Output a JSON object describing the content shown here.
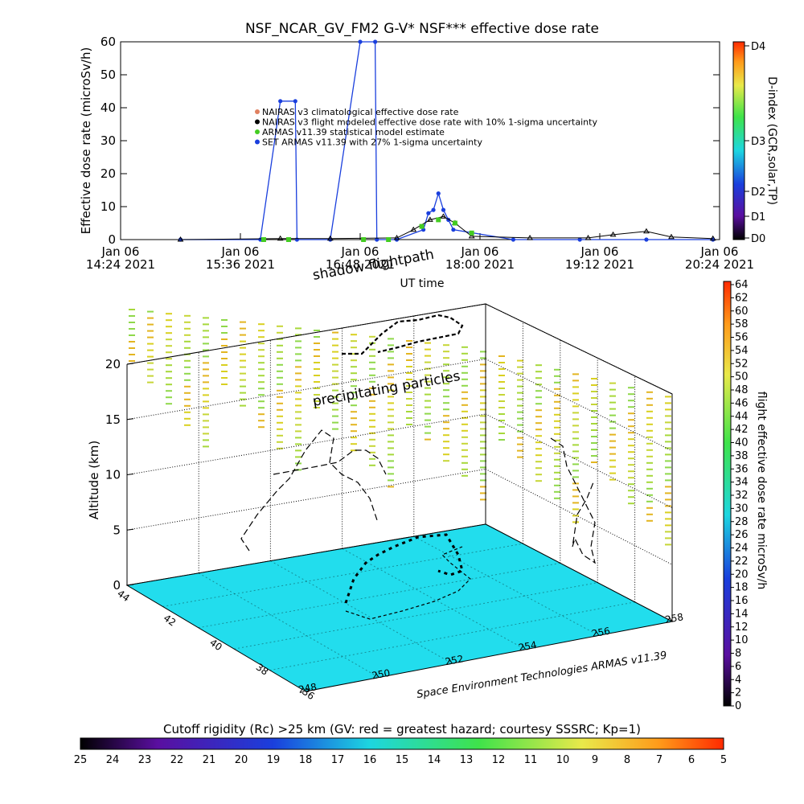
{
  "title": "NSF_NCAR_GV_FM2 G-V* NSF*** effective dose rate",
  "top_chart": {
    "ylabel": "Effective dose rate (microSv/h)",
    "xlabel": "UT time",
    "yticks": [
      "0",
      "10",
      "20",
      "30",
      "40",
      "50",
      "60"
    ],
    "xticks": [
      {
        "line1": "Jan 06",
        "line2": "14:24 2021"
      },
      {
        "line1": "Jan 06",
        "line2": "15:36 2021"
      },
      {
        "line1": "Jan 06",
        "line2": "16:48 2021"
      },
      {
        "line1": "Jan 06",
        "line2": "18:00 2021"
      },
      {
        "line1": "Jan 06",
        "line2": "19:12 2021"
      },
      {
        "line1": "Jan 06",
        "line2": "20:24 2021"
      }
    ],
    "legend": [
      {
        "label": "NAIRAS v3 climatological effective dose rate",
        "color": "#e08060"
      },
      {
        "label": "NAIRAS v3 flight modeled effective dose rate with 10% 1-sigma uncertainty",
        "color": "#000000"
      },
      {
        "label": "ARMAS v11.39 statistical model estimate",
        "color": "#44cc22"
      },
      {
        "label": "SET ARMAS v11.39 with 27% 1-sigma uncertainty",
        "color": "#1a3fdd"
      }
    ],
    "dindex_label": "D-index (GCR,solar,TP)",
    "dindex_ticks": [
      "D0",
      "D1",
      "D2",
      "D3",
      "D4"
    ]
  },
  "chart_data": {
    "type": "line",
    "title": "NSF_NCAR_GV_FM2 G-V* NSF*** effective dose rate",
    "xlabel": "UT time",
    "ylabel": "Effective dose rate (microSv/h)",
    "xlim": [
      "2021-01-06 14:24",
      "2021-01-06 20:24"
    ],
    "ylim": [
      0,
      60
    ],
    "series": [
      {
        "name": "SET ARMAS v11.39 with 27% 1-sigma uncertainty",
        "x": [
          "15:00",
          "15:48",
          "16:00",
          "16:09",
          "16:10",
          "16:30",
          "16:48",
          "16:57",
          "16:58",
          "17:10",
          "17:26",
          "17:29",
          "17:32",
          "17:35",
          "17:38",
          "17:41",
          "17:44",
          "18:20",
          "19:00",
          "19:40",
          "20:20"
        ],
        "y": [
          0,
          0,
          42,
          42,
          0,
          0,
          60,
          60,
          0,
          0,
          3,
          8,
          9,
          14,
          9,
          6,
          3,
          0,
          0,
          0,
          0
        ]
      },
      {
        "name": "NAIRAS v3 flight modeled effective dose rate with 10% 1-sigma uncertainty",
        "x": [
          "15:00",
          "16:00",
          "16:30",
          "17:10",
          "17:20",
          "17:30",
          "17:38",
          "17:45",
          "17:55",
          "18:30",
          "19:05",
          "19:20",
          "19:40",
          "19:55",
          "20:20"
        ],
        "y": [
          0,
          0.3,
          0.3,
          0.5,
          3,
          6,
          7,
          5,
          1,
          0.5,
          0.5,
          1.5,
          2.5,
          0.8,
          0.3
        ]
      },
      {
        "name": "ARMAS v11.39 statistical model estimate",
        "x": [
          "15:50",
          "16:05",
          "16:50",
          "17:05",
          "17:25",
          "17:35",
          "17:45",
          "17:55"
        ],
        "y": [
          0,
          0,
          0,
          0,
          4,
          6,
          5,
          2
        ]
      }
    ]
  },
  "bottom_chart": {
    "shadow_label": "shadow flightpath",
    "precip_label": "precipitating particles",
    "zlabel": "Altitude (km)",
    "zticks": [
      "0",
      "5",
      "10",
      "15",
      "20"
    ],
    "lat_ticks": [
      "44",
      "42",
      "40",
      "38",
      "36"
    ],
    "lon_ticks": [
      "248",
      "250",
      "252",
      "254",
      "256",
      "258"
    ],
    "credit": "Space Environment Technologies ARMAS v11.39",
    "dose_bar_label": "flight effective dose rate microSv/h",
    "dose_bar_ticks": [
      "0",
      "2",
      "4",
      "6",
      "8",
      "10",
      "12",
      "14",
      "16",
      "18",
      "20",
      "22",
      "24",
      "26",
      "28",
      "30",
      "32",
      "34",
      "36",
      "38",
      "40",
      "42",
      "44",
      "46",
      "48",
      "50",
      "52",
      "54",
      "56",
      "58",
      "60",
      "62",
      "64"
    ],
    "rc_label": "Cutoff rigidity (Rc) >25 km (GV: red = greatest hazard; courtesy SSSRC; Kp=1)",
    "rc_ticks": [
      "25",
      "24",
      "23",
      "22",
      "21",
      "20",
      "19",
      "18",
      "17",
      "16",
      "15",
      "14",
      "13",
      "12",
      "11",
      "10",
      "9",
      "8",
      "7",
      "6",
      "5"
    ],
    "floor_color": "#22dded"
  }
}
